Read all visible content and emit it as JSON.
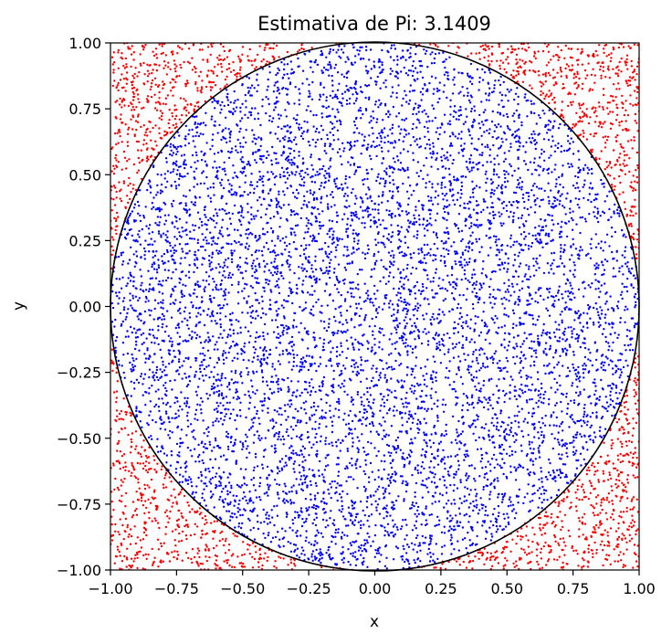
{
  "chart_data": {
    "type": "scatter",
    "title": "Estimativa de Pi: 3.1409",
    "xlabel": "x",
    "ylabel": "y",
    "xlim": [
      -1.0,
      1.0
    ],
    "ylim": [
      -1.0,
      1.0
    ],
    "xticks": [
      "−1.00",
      "−0.75",
      "−0.50",
      "−0.25",
      "0.00",
      "0.25",
      "0.50",
      "0.75",
      "1.00"
    ],
    "yticks": [
      "−1.00",
      "−0.75",
      "−0.50",
      "−0.25",
      "0.00",
      "0.25",
      "0.50",
      "0.75",
      "1.00"
    ],
    "grid": false,
    "aspect": "equal",
    "pi_estimate": 3.1409,
    "circle": {
      "center": [
        0.0,
        0.0
      ],
      "radius": 1.0,
      "color": "#000000"
    },
    "series": [
      {
        "color": "#0000ff",
        "region": "x^2 + y^2 <= 1"
      },
      {
        "color": "#ff0000",
        "region": "x^2 + y^2 > 1"
      }
    ],
    "sample_count": 10000
  }
}
